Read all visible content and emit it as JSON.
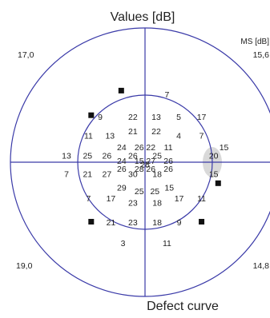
{
  "chart_data": {
    "type": "visual-field-map",
    "title": "Values [dB]",
    "footer": "Defect curve",
    "mean_sensitivity_label": "MS [dB]",
    "quadrant_ms": {
      "upper_left": "17,0",
      "upper_right": "15,6",
      "lower_left": "19,0",
      "lower_right": "14,8"
    },
    "values": [
      {
        "v": "9",
        "dx": -10,
        "dy": -10
      },
      {
        "v": "22",
        "dx": -2.7,
        "dy": -10
      },
      {
        "v": "13",
        "dx": 2.5,
        "dy": -10
      },
      {
        "v": "5",
        "dx": 7.5,
        "dy": -10
      },
      {
        "v": "7",
        "dx": 4.9,
        "dy": -15
      },
      {
        "v": "17",
        "dx": 12.6,
        "dy": -10
      },
      {
        "v": "11",
        "dx": -12.6,
        "dy": -5.8
      },
      {
        "v": "13",
        "dx": -7.8,
        "dy": -5.8
      },
      {
        "v": "21",
        "dx": -2.7,
        "dy": -6.8
      },
      {
        "v": "22",
        "dx": 2.5,
        "dy": -6.8
      },
      {
        "v": "4",
        "dx": 7.5,
        "dy": -5.8
      },
      {
        "v": "7",
        "dx": 12.6,
        "dy": -5.8
      },
      {
        "v": "24",
        "dx": -5.2,
        "dy": -3.2
      },
      {
        "v": "26",
        "dx": -1.3,
        "dy": -3.2
      },
      {
        "v": "22",
        "dx": 1.3,
        "dy": -3.2
      },
      {
        "v": "11",
        "dx": 5.2,
        "dy": -3.2
      },
      {
        "v": "15",
        "dx": 17.6,
        "dy": -3.2
      },
      {
        "v": "13",
        "dx": -17.5,
        "dy": -1.3
      },
      {
        "v": "25",
        "dx": -12.8,
        "dy": -1.3
      },
      {
        "v": "26",
        "dx": -8.5,
        "dy": -1.3
      },
      {
        "v": "26",
        "dx": -2.7,
        "dy": -1.3
      },
      {
        "v": "25",
        "dx": 2.7,
        "dy": -1.3
      },
      {
        "v": "20",
        "dx": 15.3,
        "dy": -1.3
      },
      {
        "v": "24",
        "dx": -5.2,
        "dy": -0.2
      },
      {
        "v": "15",
        "dx": -1.3,
        "dy": -0.2
      },
      {
        "v": "27",
        "dx": 1.3,
        "dy": -0.2
      },
      {
        "v": "26",
        "dx": 5.2,
        "dy": -0.2
      },
      {
        "v": "28",
        "dx": 0,
        "dy": 0.6
      },
      {
        "v": "7",
        "dx": -17.5,
        "dy": 2.8
      },
      {
        "v": "21",
        "dx": -12.8,
        "dy": 2.8
      },
      {
        "v": "27",
        "dx": -8.5,
        "dy": 2.8
      },
      {
        "v": "26",
        "dx": -5.2,
        "dy": 1.6
      },
      {
        "v": "28",
        "dx": -1.3,
        "dy": 1.6
      },
      {
        "v": "26",
        "dx": 1.3,
        "dy": 1.6
      },
      {
        "v": "26",
        "dx": 5.2,
        "dy": 1.6
      },
      {
        "v": "30",
        "dx": -2.7,
        "dy": 2.8
      },
      {
        "v": "18",
        "dx": 2.7,
        "dy": 2.8
      },
      {
        "v": "15",
        "dx": 15.3,
        "dy": 2.8
      },
      {
        "v": "29",
        "dx": -5.2,
        "dy": 5.8
      },
      {
        "v": "25",
        "dx": -1.3,
        "dy": 6.6
      },
      {
        "v": "25",
        "dx": 2.2,
        "dy": 6.6
      },
      {
        "v": "15",
        "dx": 5.4,
        "dy": 5.8
      },
      {
        "v": "7",
        "dx": -12.6,
        "dy": 8.2
      },
      {
        "v": "17",
        "dx": -7.6,
        "dy": 8.2
      },
      {
        "v": "23",
        "dx": -2.7,
        "dy": 9.2
      },
      {
        "v": "18",
        "dx": 2.7,
        "dy": 9.2
      },
      {
        "v": "17",
        "dx": 7.6,
        "dy": 8.2
      },
      {
        "v": "11",
        "dx": 12.6,
        "dy": 8.2
      },
      {
        "v": "21",
        "dx": -7.6,
        "dy": 13.6
      },
      {
        "v": "23",
        "dx": -2.7,
        "dy": 13.6
      },
      {
        "v": "18",
        "dx": 2.7,
        "dy": 13.6
      },
      {
        "v": "9",
        "dx": 7.6,
        "dy": 13.6
      },
      {
        "v": "3",
        "dx": -4.9,
        "dy": 18.2
      },
      {
        "v": "11",
        "dx": 4.9,
        "dy": 18.2
      }
    ],
    "defect_markers": [
      {
        "dx": -5.3,
        "dy": -16
      },
      {
        "dx": -12,
        "dy": -10.5
      },
      {
        "dx": 16.3,
        "dy": 4.7
      },
      {
        "dx": -12,
        "dy": 13.3
      },
      {
        "dx": 12.6,
        "dy": 13.3
      }
    ],
    "blind_spot": {
      "dx": 15,
      "dy": 0
    },
    "outer_radius_deg": 30,
    "inner_radius_deg": 15,
    "colors": {
      "boundary": "#3a3aa8",
      "text": "#222222",
      "marker": "#111111",
      "blind_spot": "#d9d9d9"
    }
  }
}
